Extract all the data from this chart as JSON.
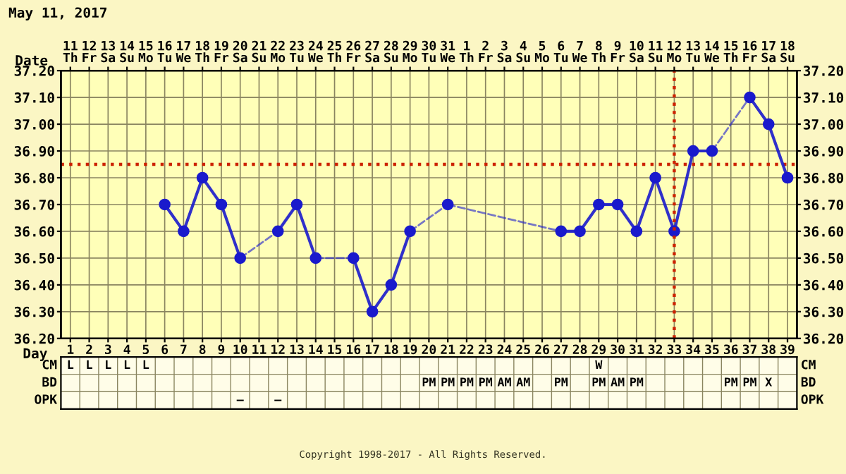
{
  "chart_data": [
    {
      "type": "line",
      "title": "May 11, 2017",
      "xlabel": "Date",
      "x2label": "Day",
      "categories": [
        "11\nTh",
        "12\nFr",
        "13\nSa",
        "14\nSu",
        "15\nMo",
        "16\nTu",
        "17\nWe",
        "18\nTh",
        "19\nFr",
        "20\nSa",
        "21\nSu",
        "22\nMo",
        "23\nTu",
        "24\nWe",
        "25\nTh",
        "26\nFr",
        "27\nSa",
        "28\nSu",
        "29\nMo",
        "30\nTu",
        "31\nWe",
        "1\nTh",
        "2\nFr",
        "3\nSa",
        "4\nSu",
        "5\nMo",
        "6\nTu",
        "7\nWe",
        "8\nTh",
        "9\nFr",
        "10\nSa",
        "11\nSu",
        "12\nMo",
        "13\nTu",
        "14\nWe",
        "15\nTh",
        "16\nFr",
        "17\nSa",
        "18\nSu"
      ],
      "series": [
        {
          "color": "#1a1acc",
          "values": [
            null,
            null,
            null,
            null,
            null,
            36.7,
            36.6,
            36.8,
            36.7,
            36.5,
            null,
            36.6,
            36.7,
            36.5,
            null,
            36.5,
            36.3,
            36.4,
            36.6,
            null,
            36.7,
            null,
            null,
            null,
            null,
            null,
            36.6,
            36.6,
            36.7,
            36.7,
            36.6,
            36.8,
            36.6,
            36.9,
            36.9,
            null,
            37.1,
            37.0,
            36.8
          ]
        }
      ],
      "marker": "circle",
      "line_style": "solid",
      "grid": true,
      "x2lim": [
        0.5,
        39.5
      ],
      "x2ticks": [
        1,
        2,
        3,
        4,
        5,
        6,
        7,
        8,
        9,
        10,
        11,
        12,
        13,
        14,
        15,
        16,
        17,
        18,
        19,
        20,
        21,
        22,
        23,
        24,
        25,
        26,
        27,
        28,
        29,
        30,
        31,
        32,
        33,
        34,
        35,
        36,
        37,
        38,
        39
      ],
      "ylim": [
        36.2,
        37.2
      ],
      "yticks": [
        {
          "value": 36.2,
          "label": "36.20"
        },
        {
          "value": 36.3,
          "label": "36.30"
        },
        {
          "value": 36.4,
          "label": "36.40"
        },
        {
          "value": 36.5,
          "label": "36.50"
        },
        {
          "value": 36.6,
          "label": "36.60"
        },
        {
          "value": 36.7,
          "label": "36.70"
        },
        {
          "value": 36.8,
          "label": "36.80"
        },
        {
          "value": 36.9,
          "label": "36.90"
        },
        {
          "value": 37.0,
          "label": "37.00"
        },
        {
          "value": 37.1,
          "label": "37.10"
        },
        {
          "value": 37.2,
          "label": "37.20"
        }
      ],
      "y2lim": [
        36.2,
        37.2
      ],
      "y2ticks": [
        {
          "value": 36.2,
          "label": "36.20"
        },
        {
          "value": 36.3,
          "label": "36.30"
        },
        {
          "value": 36.4,
          "label": "36.40"
        },
        {
          "value": 36.5,
          "label": "36.50"
        },
        {
          "value": 36.6,
          "label": "36.60"
        },
        {
          "value": 36.7,
          "label": "36.70"
        },
        {
          "value": 36.8,
          "label": "36.80"
        },
        {
          "value": 36.9,
          "label": "36.90"
        },
        {
          "value": 37.0,
          "label": "37.00"
        },
        {
          "value": 37.1,
          "label": "37.10"
        },
        {
          "value": 37.2,
          "label": "37.20"
        }
      ],
      "ref_lines": [
        {
          "axis": "y",
          "value": 36.85,
          "color": "#cc2200",
          "line_style": "dotted"
        },
        {
          "axis": "x2",
          "value": 33,
          "color": "#cc2200",
          "line_style": "dotted"
        }
      ],
      "annotations": [
        "Copyright 1998-2017 - All Rights Reserved."
      ]
    },
    {
      "type": "other",
      "y_categories": [
        "CM",
        "BD",
        "OPK"
      ],
      "cell_labels": [
        [
          "L",
          "L",
          "L",
          "L",
          "L",
          null,
          null,
          null,
          null,
          null,
          null,
          null,
          null,
          null,
          null,
          null,
          null,
          null,
          null,
          null,
          null,
          null,
          null,
          null,
          null,
          null,
          null,
          null,
          "W",
          null,
          null,
          null,
          null,
          null,
          null,
          null,
          null,
          null,
          null
        ],
        [
          null,
          null,
          null,
          null,
          null,
          null,
          null,
          null,
          null,
          null,
          null,
          null,
          null,
          null,
          null,
          null,
          null,
          null,
          null,
          "PM",
          "PM",
          "PM",
          "PM",
          "AM",
          "AM",
          null,
          "PM",
          null,
          "PM",
          "AM",
          "PM",
          null,
          null,
          null,
          null,
          "PM",
          "PM",
          "X",
          null
        ],
        [
          null,
          null,
          null,
          null,
          null,
          null,
          null,
          null,
          null,
          "–",
          null,
          "–",
          null,
          null,
          null,
          null,
          null,
          null,
          null,
          null,
          null,
          null,
          null,
          null,
          null,
          null,
          null,
          null,
          null,
          null,
          null,
          null,
          null,
          null,
          null,
          null,
          null,
          null,
          null
        ]
      ]
    }
  ]
}
